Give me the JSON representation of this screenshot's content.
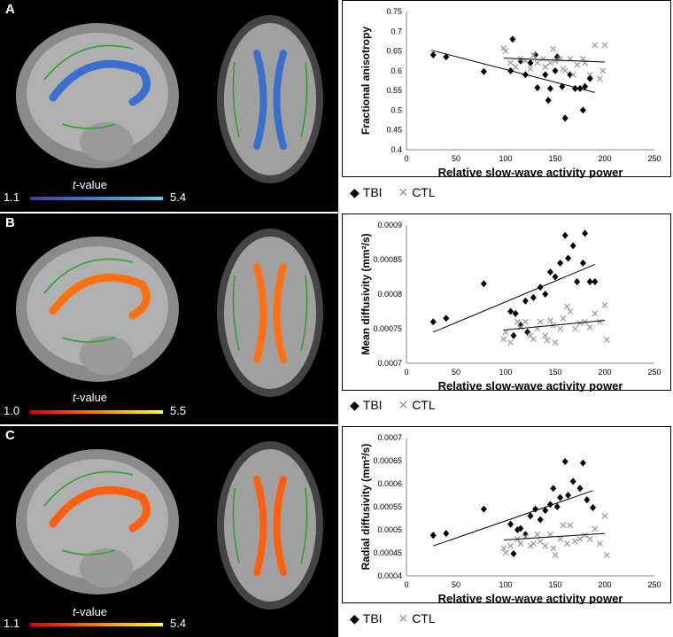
{
  "panels": [
    {
      "letter": "A",
      "colorbar": {
        "min": "1.1",
        "max": "5.4",
        "title_t": "t",
        "title_rest": "-value",
        "colors": [
          "#3a3fa0",
          "#3f7fd0",
          "#5fd0e0"
        ]
      },
      "map_color": "#3a6fd0"
    },
    {
      "letter": "B",
      "colorbar": {
        "min": "1.0",
        "max": "5.5",
        "title_t": "t",
        "title_rest": "-value",
        "colors": [
          "#d40000",
          "#ff8000",
          "#ffff30"
        ]
      },
      "map_color": "#ff7010"
    },
    {
      "letter": "C",
      "colorbar": {
        "min": "1.1",
        "max": "5.4",
        "title_t": "t",
        "title_rest": "-value",
        "colors": [
          "#d40000",
          "#ff8000",
          "#ffff30"
        ]
      },
      "map_color": "#ff6010"
    }
  ],
  "legend": {
    "tbi": "TBI",
    "ctl": "CTL"
  },
  "chart_data": [
    {
      "type": "scatter",
      "xlabel": "Relative slow-wave activity power",
      "ylabel": "Fractional anisotropy",
      "xlim": [
        0,
        250
      ],
      "ylim": [
        0.4,
        0.75
      ],
      "xticks": [
        "0",
        "50",
        "100",
        "150",
        "200",
        "250"
      ],
      "yticks": [
        "0.4",
        "0.45",
        "0.5",
        "0.55",
        "0.6",
        "0.65",
        "0.7",
        "0.75"
      ],
      "series": [
        {
          "name": "TBI",
          "marker": "diamond",
          "color": "#000000",
          "points": [
            [
              27,
              0.64
            ],
            [
              40,
              0.635
            ],
            [
              78,
              0.598
            ],
            [
              107,
              0.68
            ],
            [
              105,
              0.6
            ],
            [
              115,
              0.625
            ],
            [
              120,
              0.59
            ],
            [
              125,
              0.62
            ],
            [
              130,
              0.64
            ],
            [
              132,
              0.557
            ],
            [
              140,
              0.59
            ],
            [
              143,
              0.525
            ],
            [
              145,
              0.555
            ],
            [
              150,
              0.6
            ],
            [
              152,
              0.635
            ],
            [
              157,
              0.56
            ],
            [
              160,
              0.48
            ],
            [
              165,
              0.59
            ],
            [
              170,
              0.555
            ],
            [
              175,
              0.555
            ],
            [
              178,
              0.5
            ],
            [
              180,
              0.56
            ],
            [
              185,
              0.58
            ]
          ],
          "fit": [
            [
              25,
              0.652
            ],
            [
              190,
              0.545
            ]
          ]
        },
        {
          "name": "CTL",
          "marker": "x",
          "color": "#999999",
          "points": [
            [
              98,
              0.657
            ],
            [
              100,
              0.65
            ],
            [
              105,
              0.62
            ],
            [
              110,
              0.61
            ],
            [
              115,
              0.63
            ],
            [
              120,
              0.625
            ],
            [
              125,
              0.605
            ],
            [
              128,
              0.64
            ],
            [
              132,
              0.62
            ],
            [
              138,
              0.63
            ],
            [
              140,
              0.61
            ],
            [
              145,
              0.62
            ],
            [
              148,
              0.655
            ],
            [
              150,
              0.625
            ],
            [
              155,
              0.63
            ],
            [
              158,
              0.605
            ],
            [
              160,
              0.6
            ],
            [
              165,
              0.63
            ],
            [
              168,
              0.59
            ],
            [
              172,
              0.615
            ],
            [
              178,
              0.63
            ],
            [
              180,
              0.62
            ],
            [
              185,
              0.59
            ],
            [
              190,
              0.665
            ],
            [
              195,
              0.58
            ],
            [
              198,
              0.6
            ],
            [
              200,
              0.665
            ]
          ],
          "fit": [
            [
              98,
              0.632
            ],
            [
              200,
              0.622
            ]
          ]
        }
      ]
    },
    {
      "type": "scatter",
      "xlabel": "Relative slow-wave activity power",
      "ylabel": "Mean diffusivity (mm²/s)",
      "xlim": [
        0,
        250
      ],
      "ylim": [
        0.0007,
        0.0009
      ],
      "xticks": [
        "0",
        "50",
        "100",
        "150",
        "200",
        "250"
      ],
      "yticks": [
        "0.0007",
        "0.00075",
        "0.0008",
        "0.00085",
        "0.0009"
      ],
      "series": [
        {
          "name": "TBI",
          "marker": "diamond",
          "color": "#000000",
          "points": [
            [
              27,
              0.00076
            ],
            [
              40,
              0.000765
            ],
            [
              78,
              0.000815
            ],
            [
              105,
              0.000775
            ],
            [
              108,
              0.00074
            ],
            [
              110,
              0.000772
            ],
            [
              115,
              0.000755
            ],
            [
              120,
              0.00079
            ],
            [
              122,
              0.000745
            ],
            [
              128,
              0.000795
            ],
            [
              135,
              0.00081
            ],
            [
              140,
              0.0008
            ],
            [
              145,
              0.000832
            ],
            [
              150,
              0.000825
            ],
            [
              155,
              0.000845
            ],
            [
              160,
              0.000885
            ],
            [
              163,
              0.000852
            ],
            [
              168,
              0.00087
            ],
            [
              172,
              0.000818
            ],
            [
              178,
              0.000845
            ],
            [
              180,
              0.000888
            ],
            [
              185,
              0.000818
            ],
            [
              190,
              0.000818
            ]
          ],
          "fit": [
            [
              27,
              0.000745
            ],
            [
              190,
              0.000843
            ]
          ]
        },
        {
          "name": "CTL",
          "marker": "x",
          "color": "#999999",
          "points": [
            [
              98,
              0.000735
            ],
            [
              100,
              0.000745
            ],
            [
              105,
              0.00073
            ],
            [
              112,
              0.00076
            ],
            [
              115,
              0.000752
            ],
            [
              120,
              0.00076
            ],
            [
              125,
              0.00074
            ],
            [
              128,
              0.000735
            ],
            [
              132,
              0.00075
            ],
            [
              135,
              0.00076
            ],
            [
              140,
              0.00074
            ],
            [
              142,
              0.000733
            ],
            [
              145,
              0.000762
            ],
            [
              148,
              0.000755
            ],
            [
              150,
              0.00073
            ],
            [
              155,
              0.00075
            ],
            [
              158,
              0.000765
            ],
            [
              162,
              0.000782
            ],
            [
              165,
              0.000775
            ],
            [
              170,
              0.00075
            ],
            [
              175,
              0.000758
            ],
            [
              180,
              0.00076
            ],
            [
              185,
              0.000752
            ],
            [
              190,
              0.000772
            ],
            [
              195,
              0.00076
            ],
            [
              200,
              0.000784
            ],
            [
              202,
              0.000734
            ]
          ],
          "fit": [
            [
              98,
              0.000748
            ],
            [
              200,
              0.000762
            ]
          ]
        }
      ]
    },
    {
      "type": "scatter",
      "xlabel": "Relative slow-wave activity power",
      "ylabel": "Radial diffusivity (mm²/s)",
      "xlim": [
        0,
        250
      ],
      "ylim": [
        0.0004,
        0.0007
      ],
      "xticks": [
        "0",
        "50",
        "100",
        "150",
        "200",
        "250"
      ],
      "yticks": [
        "0.0004",
        "0.00045",
        "0.0005",
        "0.00055",
        "0.0006",
        "0.00065",
        "0.0007"
      ],
      "series": [
        {
          "name": "TBI",
          "marker": "diamond",
          "color": "#000000",
          "points": [
            [
              27,
              0.000488
            ],
            [
              40,
              0.000492
            ],
            [
              78,
              0.000545
            ],
            [
              105,
              0.000512
            ],
            [
              108,
              0.000448
            ],
            [
              112,
              0.0005
            ],
            [
              115,
              0.000503
            ],
            [
              120,
              0.00049
            ],
            [
              125,
              0.00053
            ],
            [
              130,
              0.000545
            ],
            [
              135,
              0.000522
            ],
            [
              140,
              0.000542
            ],
            [
              145,
              0.000555
            ],
            [
              148,
              0.00059
            ],
            [
              152,
              0.00055
            ],
            [
              155,
              0.00057
            ],
            [
              160,
              0.000648
            ],
            [
              163,
              0.000575
            ],
            [
              168,
              0.000605
            ],
            [
              175,
              0.00059
            ],
            [
              178,
              0.000645
            ],
            [
              182,
              0.000565
            ],
            [
              188,
              0.000548
            ]
          ],
          "fit": [
            [
              27,
              0.000465
            ],
            [
              188,
              0.000585
            ]
          ]
        },
        {
          "name": "CTL",
          "marker": "x",
          "color": "#999999",
          "points": [
            [
              98,
              0.00046
            ],
            [
              100,
              0.00045
            ],
            [
              105,
              0.000465
            ],
            [
              112,
              0.00048
            ],
            [
              115,
              0.00047
            ],
            [
              120,
              0.000485
            ],
            [
              125,
              0.000465
            ],
            [
              128,
              0.00047
            ],
            [
              132,
              0.00049
            ],
            [
              135,
              0.000475
            ],
            [
              140,
              0.000465
            ],
            [
              145,
              0.00049
            ],
            [
              148,
              0.00046
            ],
            [
              150,
              0.000445
            ],
            [
              155,
              0.00048
            ],
            [
              158,
              0.00051
            ],
            [
              162,
              0.00047
            ],
            [
              165,
              0.00051
            ],
            [
              170,
              0.000475
            ],
            [
              175,
              0.00048
            ],
            [
              180,
              0.000488
            ],
            [
              185,
              0.00048
            ],
            [
              190,
              0.000502
            ],
            [
              195,
              0.00047
            ],
            [
              200,
              0.00053
            ],
            [
              202,
              0.000445
            ]
          ],
          "fit": [
            [
              98,
              0.000478
            ],
            [
              200,
              0.000492
            ]
          ]
        }
      ]
    }
  ]
}
